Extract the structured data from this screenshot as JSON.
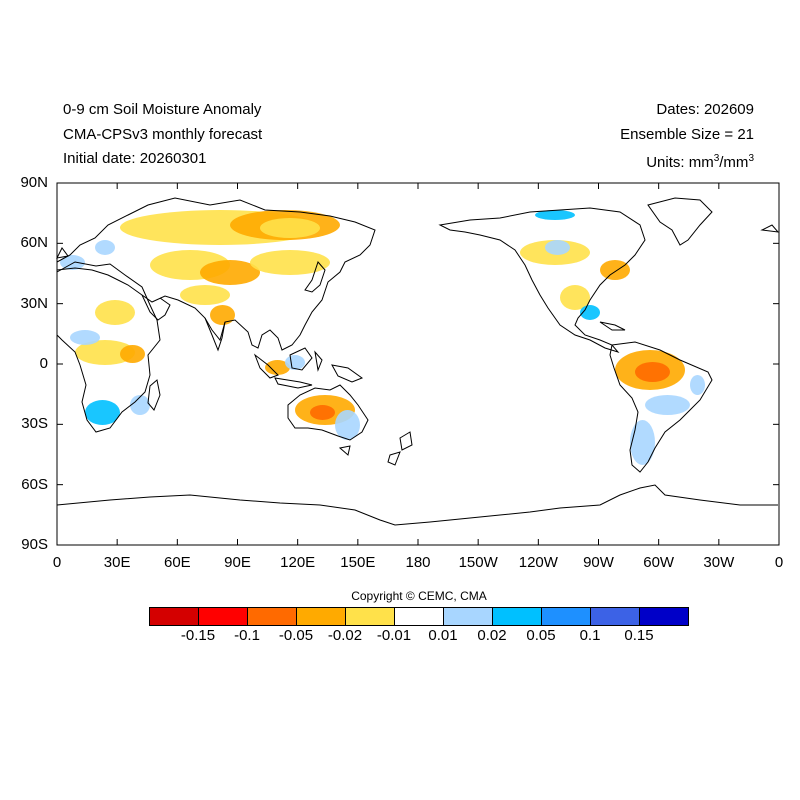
{
  "header": {
    "title": "0-9 cm Soil Moisture Anomaly",
    "model": "CMA-CPSv3 monthly forecast",
    "initial_date": "Initial date: 20260301",
    "dates": "Dates: 202609",
    "ensemble": "Ensemble Size = 21",
    "units_prefix": "Units: mm",
    "units_exp1": "3",
    "units_mid": "/mm",
    "units_exp2": "3"
  },
  "map": {
    "lat_labels": [
      "90N",
      "60N",
      "30N",
      "0",
      "30S",
      "60S",
      "90S"
    ],
    "lon_labels": [
      "0",
      "30E",
      "60E",
      "90E",
      "120E",
      "150E",
      "180",
      "150W",
      "120W",
      "90W",
      "60W",
      "30W",
      "0"
    ],
    "lon_range": [
      0,
      360
    ],
    "lat_range": [
      -90,
      90
    ],
    "projection": "cylindrical equidistant, centered 180"
  },
  "copyright": "Copyright © CEMC, CMA",
  "colorbar": {
    "colors": [
      "#d40000",
      "#ff0000",
      "#ff6a00",
      "#ffaa00",
      "#ffe14a",
      "#ffffff",
      "#a8d6ff",
      "#00c0ff",
      "#1e90ff",
      "#3c62e6",
      "#0000c8"
    ],
    "tick_labels": [
      "-0.15",
      "-0.1",
      "-0.05",
      "-0.02",
      "-0.01",
      "0.01",
      "0.02",
      "0.05",
      "0.1",
      "0.15"
    ]
  },
  "colors": {
    "dry_strong": "#ff6a00",
    "dry": "#ffaa00",
    "dry_weak": "#ffe14a",
    "wet_weak": "#a8d6ff",
    "wet": "#00c0ff",
    "wet_strong": "#1e90ff"
  }
}
